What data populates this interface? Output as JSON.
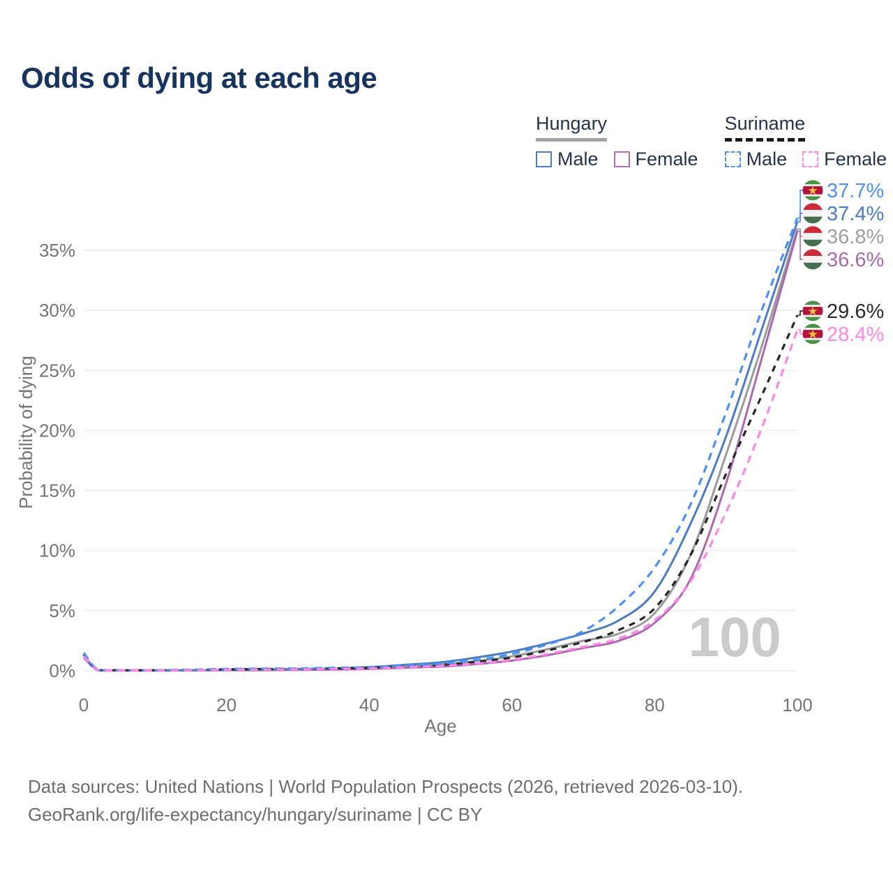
{
  "title": "Odds of dying at each age",
  "watermark": "100",
  "legend": {
    "groups": [
      {
        "label": "Hungary",
        "line_style": "solid",
        "underline_color": "#a2a2a2",
        "items": [
          {
            "label": "Male",
            "color": "#4b7cc4",
            "dash": false
          },
          {
            "label": "Female",
            "color": "#b76cb9",
            "dash": false
          }
        ]
      },
      {
        "label": "Suriname",
        "line_style": "dashed",
        "underline_color": "#1a1a1a",
        "items": [
          {
            "label": "Male",
            "color": "#4a90f7",
            "dash": true
          },
          {
            "label": "Female",
            "color": "#ff85e8",
            "dash": true
          }
        ]
      }
    ]
  },
  "chart_data": {
    "type": "line",
    "title": "Odds of dying at each age",
    "xlabel": "Age",
    "ylabel": "Probability of dying",
    "xlim": [
      0,
      100
    ],
    "ylim_percent": [
      0,
      35
    ],
    "x_ticks": [
      0,
      20,
      40,
      60,
      80,
      100
    ],
    "y_ticks_percent": [
      0,
      5,
      10,
      15,
      20,
      25,
      30,
      35
    ],
    "grid": "horizontal",
    "legend_position": "top-right",
    "age_counter": "100",
    "x": [
      0,
      2,
      5,
      10,
      15,
      20,
      25,
      30,
      35,
      40,
      45,
      50,
      55,
      60,
      65,
      70,
      75,
      80,
      85,
      90,
      95,
      100
    ],
    "series": [
      {
        "name": "Hungary",
        "country": "Hungary",
        "sex": "all",
        "color": "#9b9b9b",
        "dash": false,
        "flag": "hungary",
        "values": [
          1.2,
          0.05,
          0.03,
          0.02,
          0.04,
          0.06,
          0.08,
          0.11,
          0.15,
          0.22,
          0.37,
          0.52,
          0.8,
          1.2,
          1.8,
          2.5,
          3.1,
          4.8,
          9.6,
          18.0,
          27.0,
          36.8
        ],
        "end_label": "36.8%",
        "end_label_color": "#9e9e9e"
      },
      {
        "name": "Hungary Female",
        "country": "Hungary",
        "sex": "female",
        "color": "#ab67b0",
        "dash": false,
        "flag": "hungary",
        "values": [
          1.1,
          0.04,
          0.02,
          0.02,
          0.03,
          0.04,
          0.05,
          0.07,
          0.1,
          0.15,
          0.25,
          0.35,
          0.55,
          0.85,
          1.3,
          1.9,
          2.5,
          4.0,
          7.6,
          15.6,
          26.0,
          36.6
        ],
        "end_label": "36.6%",
        "end_label_color": "#ab67b0"
      },
      {
        "name": "Hungary Male",
        "country": "Hungary",
        "sex": "male",
        "color": "#4b7cc4",
        "dash": false,
        "flag": "hungary",
        "values": [
          1.3,
          0.06,
          0.03,
          0.03,
          0.05,
          0.08,
          0.1,
          0.15,
          0.2,
          0.3,
          0.5,
          0.7,
          1.1,
          1.6,
          2.3,
          3.1,
          4.2,
          6.6,
          12.2,
          19.5,
          28.4,
          37.4
        ],
        "end_label": "37.4%",
        "end_label_color": "#4b7cc4"
      },
      {
        "name": "Suriname",
        "country": "Suriname",
        "sex": "all",
        "color": "#262626",
        "dash": true,
        "flag": "suriname",
        "values": [
          1.35,
          0.09,
          0.05,
          0.05,
          0.08,
          0.12,
          0.14,
          0.16,
          0.2,
          0.25,
          0.37,
          0.5,
          0.75,
          1.1,
          1.7,
          2.4,
          3.4,
          5.2,
          9.6,
          16.4,
          22.9,
          29.6
        ],
        "end_label": "29.6%",
        "end_label_color": "#2b2b2b"
      },
      {
        "name": "Suriname Male",
        "country": "Suriname",
        "sex": "male",
        "color": "#4a90f7",
        "dash": true,
        "flag": "suriname",
        "values": [
          1.5,
          0.1,
          0.06,
          0.05,
          0.1,
          0.15,
          0.18,
          0.2,
          0.25,
          0.3,
          0.45,
          0.6,
          0.9,
          1.4,
          2.2,
          3.3,
          5.4,
          8.6,
          13.8,
          21.5,
          30.0,
          37.7
        ],
        "end_label": "37.7%",
        "end_label_color": "#4a90f7"
      },
      {
        "name": "Suriname Female",
        "country": "Suriname",
        "sex": "female",
        "color": "#ff85e8",
        "dash": true,
        "flag": "suriname",
        "values": [
          1.2,
          0.07,
          0.04,
          0.04,
          0.06,
          0.08,
          0.1,
          0.12,
          0.16,
          0.2,
          0.3,
          0.4,
          0.6,
          0.9,
          1.4,
          2.0,
          2.7,
          4.2,
          7.4,
          13.2,
          20.2,
          28.4
        ],
        "end_label": "28.4%",
        "end_label_color": "#ff85e8"
      }
    ],
    "flags": {
      "hungary": {
        "bands": [
          [
            "#ce2939",
            0.333
          ],
          [
            "#f2f2f2",
            0.334
          ],
          [
            "#477050",
            0.333
          ]
        ],
        "star": false
      },
      "suriname": {
        "bands": [
          [
            "#4d8f44",
            0.2
          ],
          [
            "#f2f2f2",
            0.1
          ],
          [
            "#b5123c",
            0.4
          ],
          [
            "#f2f2f2",
            0.1
          ],
          [
            "#4d8f44",
            0.2
          ]
        ],
        "star": true,
        "star_color": "#f0c53f"
      }
    }
  },
  "footer": {
    "line1": "Data sources: United Nations | World Population Prospects (2026, retrieved 2026-03-10).",
    "line2": "GeoRank.org/life-expectancy/hungary/suriname | CC BY"
  }
}
